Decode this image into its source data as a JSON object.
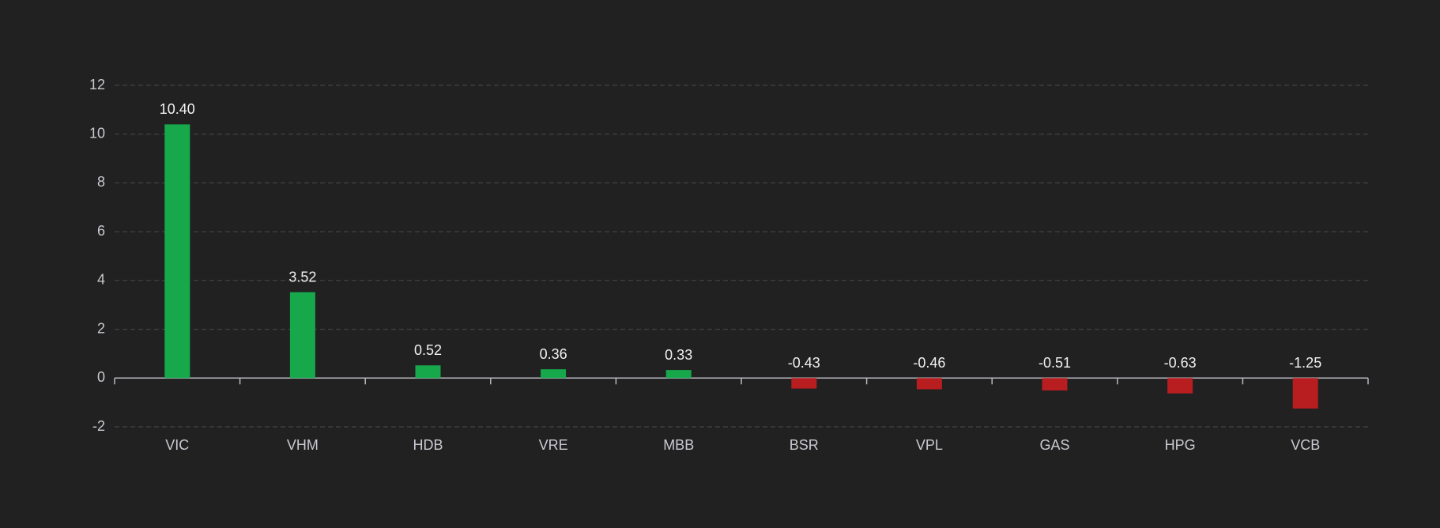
{
  "chart_data": {
    "type": "bar",
    "categories": [
      "VIC",
      "VHM",
      "HDB",
      "VRE",
      "MBB",
      "BSR",
      "VPL",
      "GAS",
      "HPG",
      "VCB"
    ],
    "values": [
      10.4,
      3.52,
      0.52,
      0.36,
      0.33,
      -0.43,
      -0.46,
      -0.51,
      -0.63,
      -1.25
    ],
    "value_labels": [
      "10.40",
      "3.52",
      "0.52",
      "0.36",
      "0.33",
      "-0.43",
      "-0.46",
      "-0.51",
      "-0.63",
      "-1.25"
    ],
    "positive_color": "#17a84b",
    "negative_color": "#b81d1f",
    "ylim": [
      -2,
      12
    ],
    "yticks": [
      -2,
      0,
      2,
      4,
      6,
      8,
      10,
      12
    ],
    "grid": true
  }
}
